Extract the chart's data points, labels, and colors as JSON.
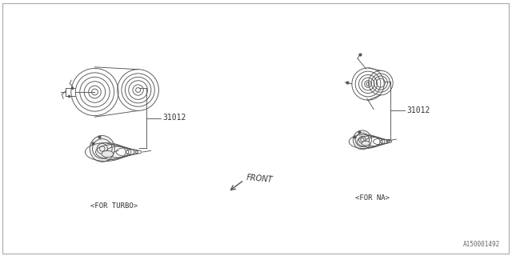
{
  "bg_color": "#ffffff",
  "border_color": "#aaaaaa",
  "line_color": "#555555",
  "text_color": "#333333",
  "part_number": "31012",
  "label_turbo": "<FOR TURBO>",
  "label_na": "<FOR NA>",
  "label_front": "FRONT",
  "diagram_id": "A150001492",
  "fig_width": 6.4,
  "fig_height": 3.2,
  "dpi": 100
}
